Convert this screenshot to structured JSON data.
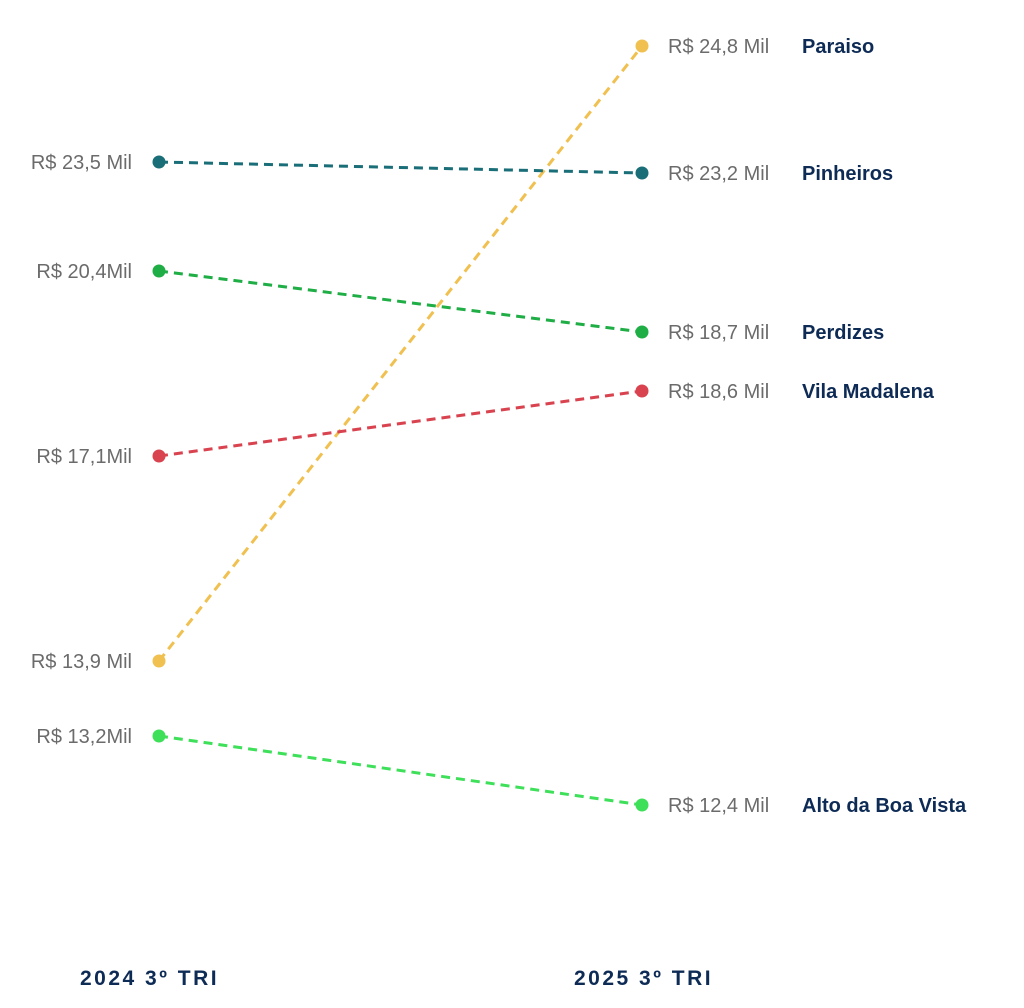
{
  "chart_data": {
    "type": "line",
    "subtype": "slope",
    "title": "",
    "categories": [
      "2024 3º TRI",
      "2025 3º TRI"
    ],
    "series": [
      {
        "name": "Paraiso",
        "values": [
          13.9,
          24.8
        ],
        "labels": [
          "R$ 13,9 Mil",
          "R$ 24,8 Mil"
        ],
        "color": "#f0c050"
      },
      {
        "name": "Pinheiros",
        "values": [
          23.5,
          23.2
        ],
        "labels": [
          "R$ 23,5 Mil",
          "R$ 23,2 Mil"
        ],
        "color": "#1a6e78"
      },
      {
        "name": "Perdizes",
        "values": [
          20.4,
          18.7
        ],
        "labels": [
          "R$ 20,4Mil",
          "R$ 18,7 Mil"
        ],
        "color": "#1fae45"
      },
      {
        "name": "Vila Madalena",
        "values": [
          17.1,
          18.6
        ],
        "labels": [
          "R$ 17,1Mil",
          "R$ 18,6 Mil"
        ],
        "color": "#d9434f"
      },
      {
        "name": "Alto da Boa Vista",
        "values": [
          13.2,
          12.4
        ],
        "labels": [
          "R$ 13,2Mil",
          "R$ 12,4 Mil"
        ],
        "color": "#3ee05a"
      }
    ],
    "unit": "R$ Mil",
    "grid": false,
    "legend": "right-labels"
  }
}
